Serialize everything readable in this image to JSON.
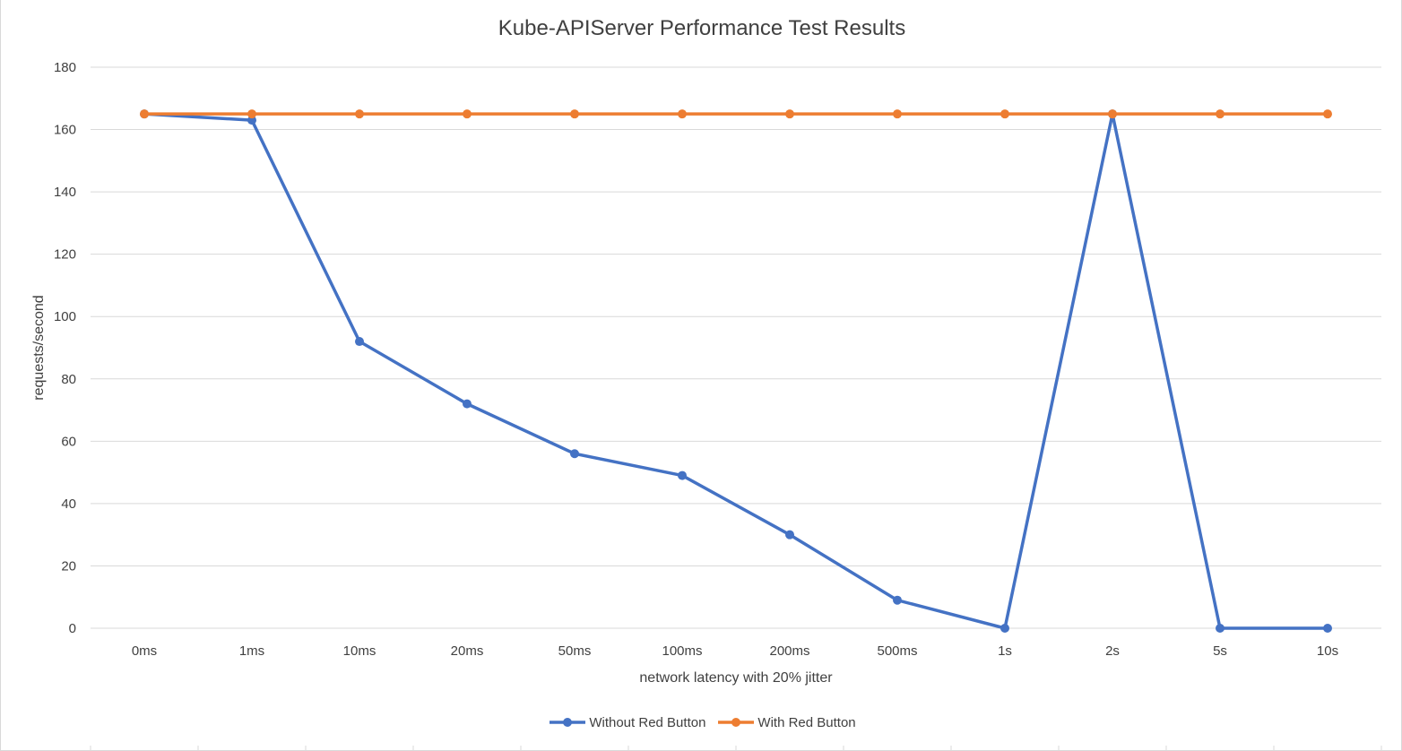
{
  "chart_data": {
    "type": "line",
    "title": "Kube-APIServer Performance Test Results",
    "xlabel": "network latency with 20% jitter",
    "ylabel": "requests/second",
    "categories": [
      "0ms",
      "1ms",
      "10ms",
      "20ms",
      "50ms",
      "100ms",
      "200ms",
      "500ms",
      "1s",
      "2s",
      "5s",
      "10s"
    ],
    "ylim": [
      0,
      180
    ],
    "yticks": [
      0,
      20,
      40,
      60,
      80,
      100,
      120,
      140,
      160,
      180
    ],
    "grid": true,
    "legend_position": "bottom",
    "series": [
      {
        "name": "Without Red Button",
        "color": "#4472c4",
        "values": [
          165,
          163,
          92,
          72,
          56,
          49,
          30,
          9,
          0,
          165,
          0,
          0
        ]
      },
      {
        "name": "With Red Button",
        "color": "#ed7d31",
        "values": [
          165,
          165,
          165,
          165,
          165,
          165,
          165,
          165,
          165,
          165,
          165,
          165
        ]
      }
    ]
  },
  "colors": {
    "gridline": "#d9d9d9",
    "text": "#404040"
  }
}
